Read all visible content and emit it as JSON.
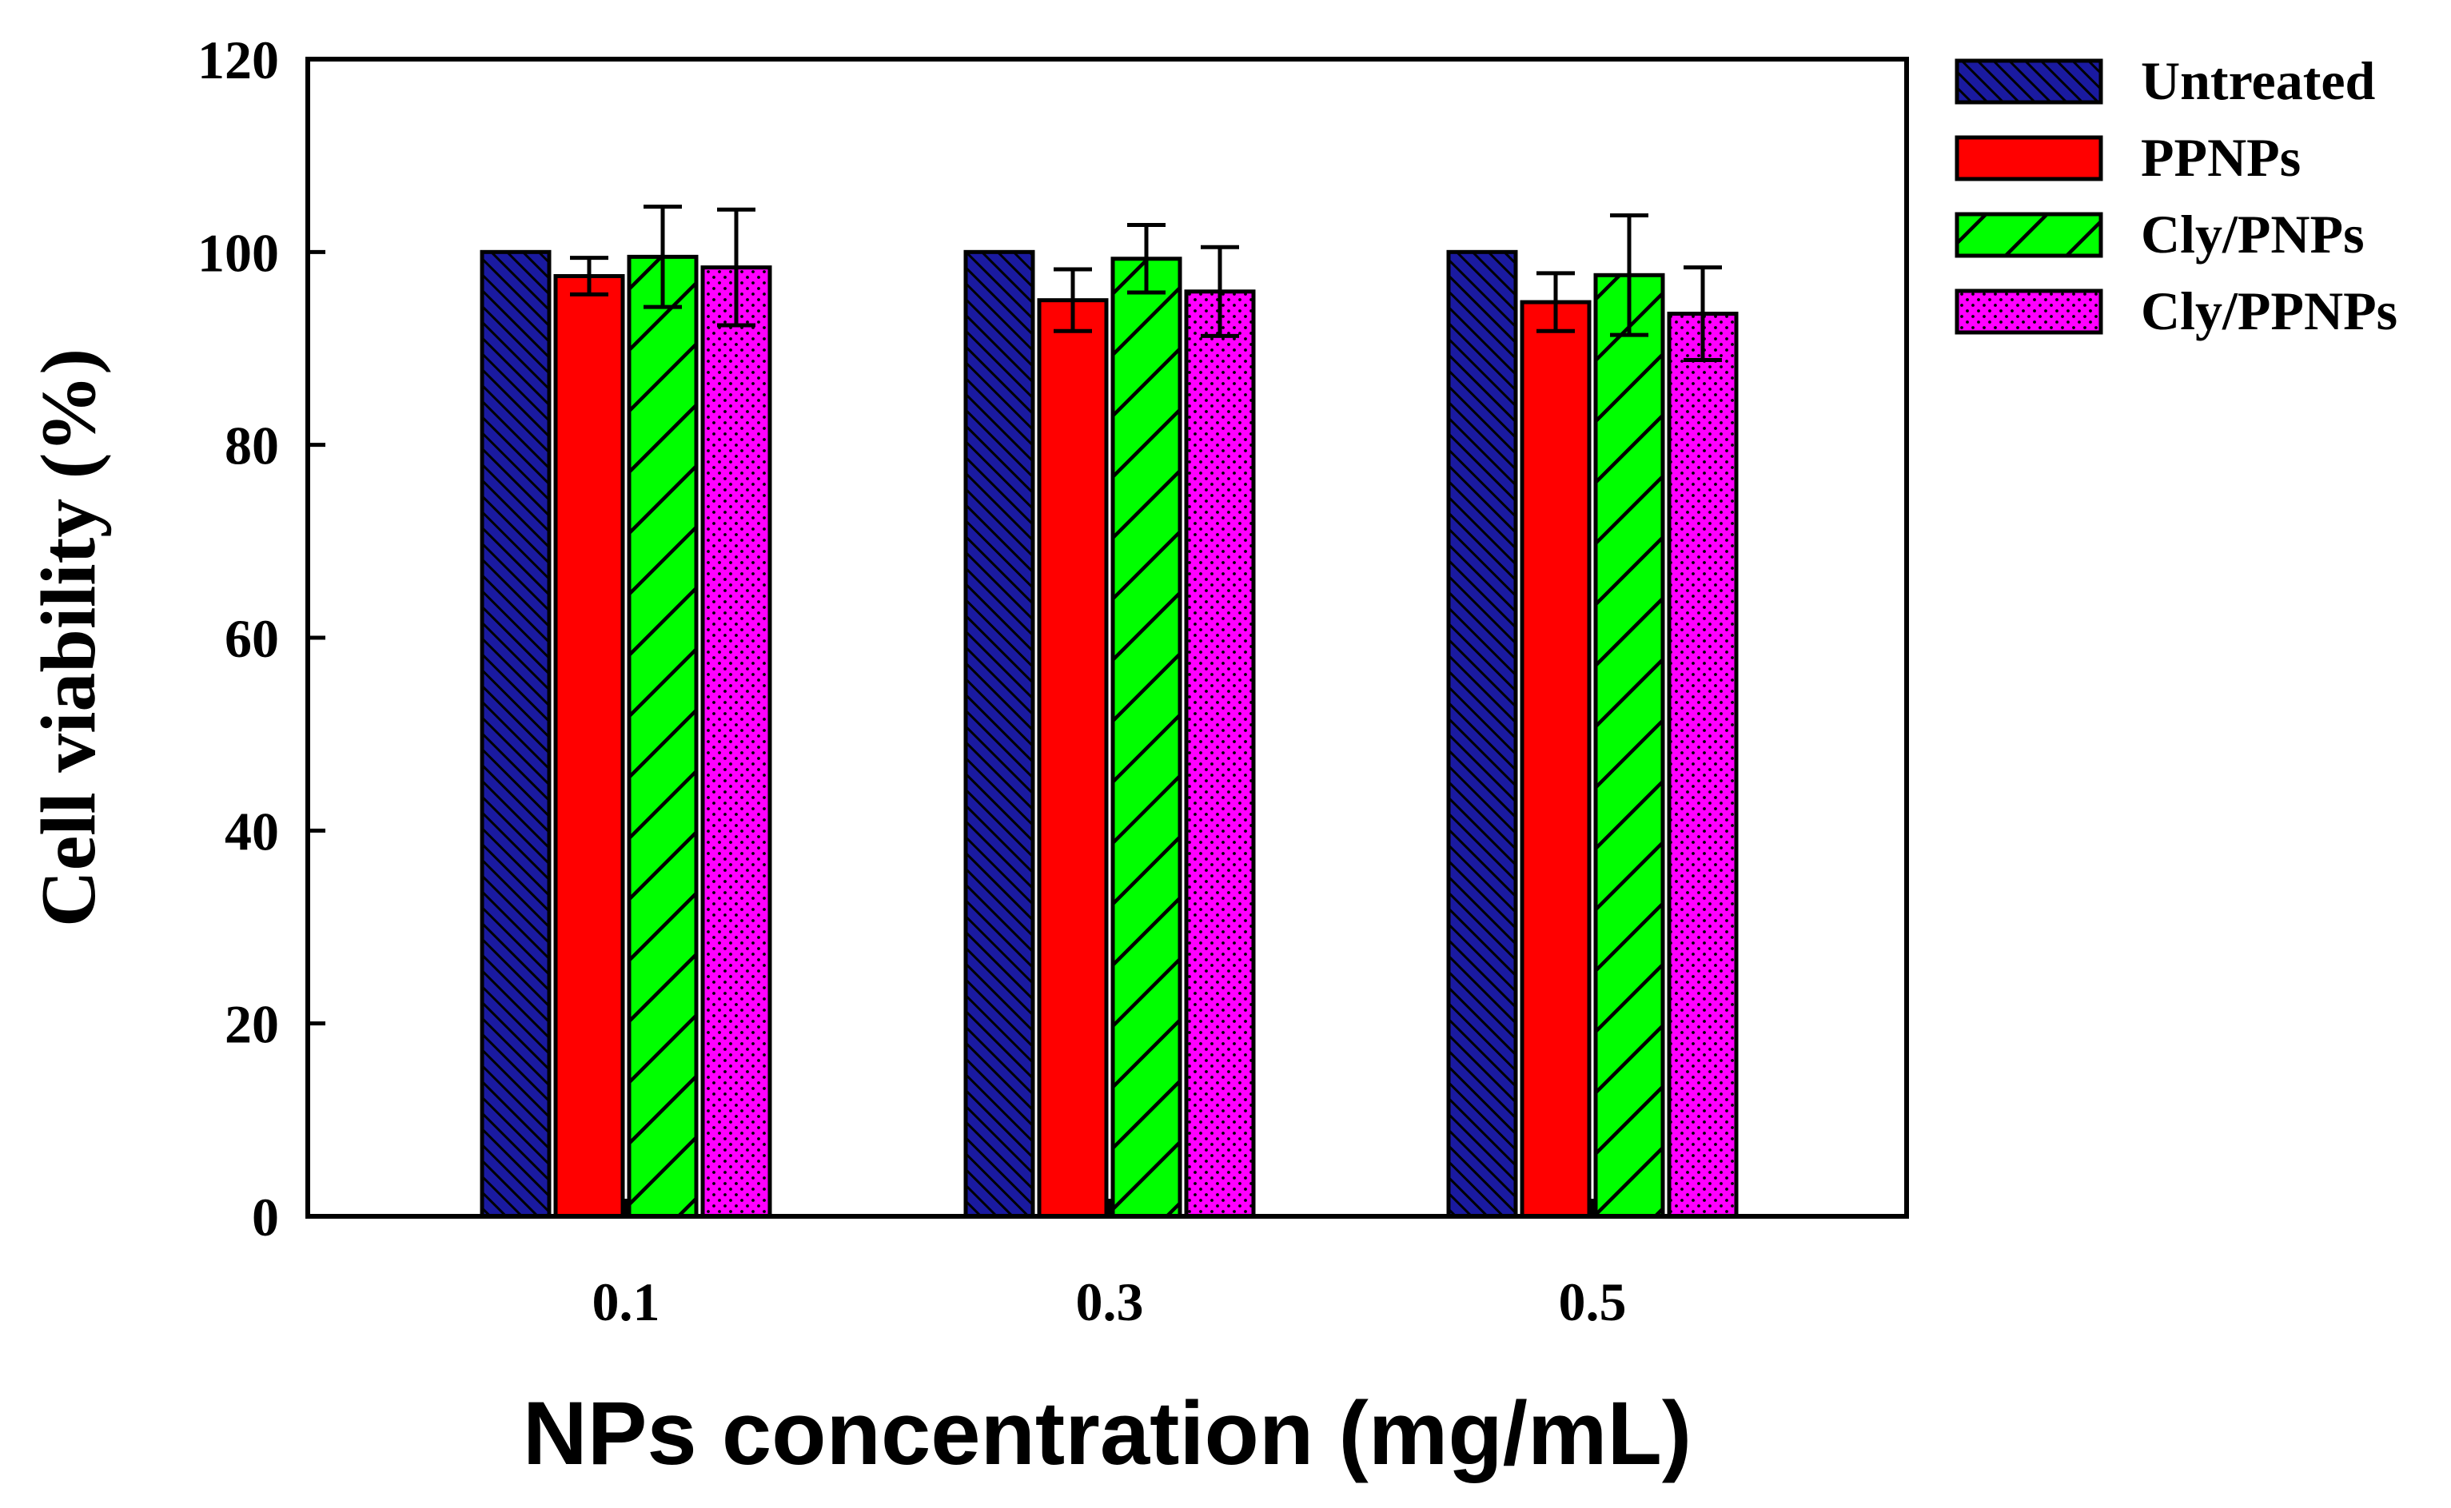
{
  "chart_data": {
    "type": "bar",
    "title": "",
    "xlabel": "NPs concentration (mg/mL)",
    "ylabel": "Cell viability (%)",
    "categories": [
      "0.1",
      "0.3",
      "0.5"
    ],
    "ylim": [
      0,
      120
    ],
    "yticks": [
      "0",
      "20",
      "40",
      "60",
      "80",
      "100",
      "120"
    ],
    "grid": false,
    "legend_position": "outside-top-right",
    "series": [
      {
        "name": "Untreated",
        "color": "#1a1aa0",
        "pattern": "dense-diagonal-hatch",
        "values": [
          100,
          100,
          100
        ],
        "errors": [
          0,
          0,
          0
        ]
      },
      {
        "name": "PPNPs",
        "color": "#ff0000",
        "pattern": "solid",
        "values": [
          97.5,
          95.0,
          94.8
        ],
        "errors": [
          1.9,
          3.2,
          3.0
        ]
      },
      {
        "name": "Cly/PNPs",
        "color": "#00ff00",
        "pattern": "wide-diagonal-hatch",
        "values": [
          99.5,
          99.3,
          97.6
        ],
        "errors": [
          5.2,
          3.5,
          6.2
        ]
      },
      {
        "name": "Cly/PPNPs",
        "color": "#ff00ff",
        "pattern": "dotted",
        "values": [
          98.4,
          95.9,
          93.6
        ],
        "errors": [
          6.0,
          4.6,
          4.8
        ]
      }
    ]
  }
}
